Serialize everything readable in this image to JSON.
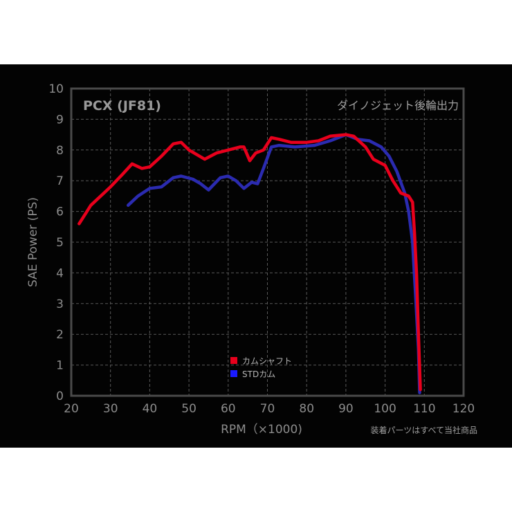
{
  "chart": {
    "title": "PCX (JF81)",
    "subtitle": "ダイノジェット後輪出力",
    "xlabel": "RPM（×1000)",
    "ylabel": "SAE Power (PS)",
    "note": "装着パーツはすべて当社商品",
    "legend": [
      {
        "label": "カムシャフト",
        "color": "#e8001c"
      },
      {
        "label": "STDカム",
        "color": "#1a1aff"
      }
    ]
  },
  "chart_data": {
    "type": "line",
    "title": "PCX (JF81)",
    "subtitle": "ダイノジェット後輪出力",
    "xlabel": "RPM（×1000)",
    "ylabel": "SAE Power (PS)",
    "xlim": [
      20,
      120
    ],
    "ylim": [
      0,
      10
    ],
    "xticks": [
      "20",
      "30",
      "40",
      "50",
      "60",
      "70",
      "80",
      "90",
      "100",
      "110",
      "120"
    ],
    "yticks": [
      "0",
      "1",
      "2",
      "3",
      "4",
      "5",
      "6",
      "7",
      "8",
      "9",
      "10"
    ],
    "grid": true,
    "legend_position": "lower-center",
    "series": [
      {
        "name": "カムシャフト",
        "color": "#e8001c",
        "points": [
          [
            22,
            5.6
          ],
          [
            25,
            6.2
          ],
          [
            30,
            6.8
          ],
          [
            33,
            7.2
          ],
          [
            35.5,
            7.55
          ],
          [
            38,
            7.4
          ],
          [
            40,
            7.45
          ],
          [
            43,
            7.8
          ],
          [
            46,
            8.2
          ],
          [
            48,
            8.25
          ],
          [
            50,
            8.0
          ],
          [
            54,
            7.7
          ],
          [
            57,
            7.9
          ],
          [
            60,
            8.0
          ],
          [
            63,
            8.1
          ],
          [
            64,
            8.1
          ],
          [
            65.5,
            7.65
          ],
          [
            67,
            7.9
          ],
          [
            69,
            8.0
          ],
          [
            71,
            8.4
          ],
          [
            73,
            8.35
          ],
          [
            76,
            8.25
          ],
          [
            80,
            8.25
          ],
          [
            83,
            8.3
          ],
          [
            86,
            8.45
          ],
          [
            90,
            8.5
          ],
          [
            92,
            8.45
          ],
          [
            95,
            8.1
          ],
          [
            97,
            7.7
          ],
          [
            100,
            7.5
          ],
          [
            102,
            7.0
          ],
          [
            104,
            6.6
          ],
          [
            106,
            6.5
          ],
          [
            107,
            6.3
          ],
          [
            107.5,
            5.3
          ],
          [
            108,
            4.0
          ],
          [
            108.5,
            2.0
          ],
          [
            109,
            0.2
          ]
        ]
      },
      {
        "name": "STDカム",
        "color": "#2b2bb0",
        "points": [
          [
            34.5,
            6.2
          ],
          [
            37,
            6.5
          ],
          [
            40,
            6.75
          ],
          [
            43,
            6.8
          ],
          [
            46,
            7.1
          ],
          [
            48,
            7.15
          ],
          [
            51,
            7.05
          ],
          [
            53,
            6.9
          ],
          [
            55,
            6.7
          ],
          [
            58,
            7.1
          ],
          [
            60,
            7.15
          ],
          [
            62,
            7.0
          ],
          [
            64,
            6.75
          ],
          [
            66,
            6.95
          ],
          [
            67.5,
            6.9
          ],
          [
            69,
            7.4
          ],
          [
            71,
            8.1
          ],
          [
            73,
            8.15
          ],
          [
            77,
            8.1
          ],
          [
            82,
            8.15
          ],
          [
            86,
            8.3
          ],
          [
            90,
            8.5
          ],
          [
            93,
            8.35
          ],
          [
            96,
            8.3
          ],
          [
            99,
            8.1
          ],
          [
            101,
            7.8
          ],
          [
            103,
            7.3
          ],
          [
            105,
            6.6
          ],
          [
            106,
            6.0
          ],
          [
            107,
            5.0
          ],
          [
            107.3,
            4.3
          ],
          [
            107.8,
            3.2
          ],
          [
            108.5,
            1.5
          ],
          [
            108.8,
            0.1
          ]
        ]
      }
    ]
  }
}
